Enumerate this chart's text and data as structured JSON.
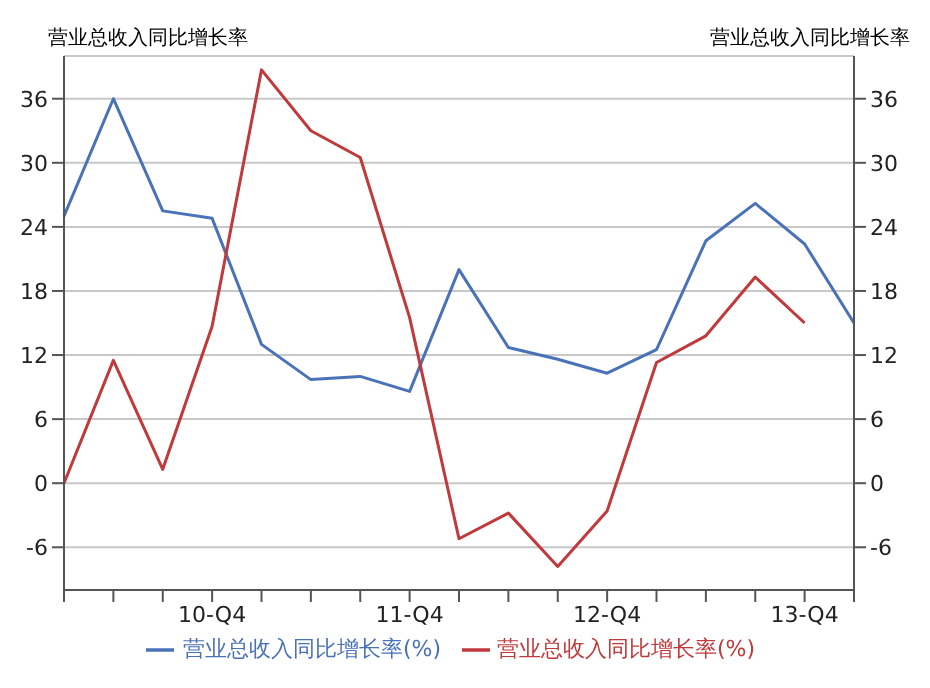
{
  "chart_data": {
    "type": "line",
    "ylabel": "营业总收入同比增长率",
    "y2label": "营业总收入同比增长率",
    "categories": [
      null,
      null,
      null,
      "10-Q4",
      null,
      null,
      null,
      "11-Q4",
      null,
      null,
      null,
      "12-Q4",
      null,
      null,
      null,
      "13-Q4",
      null
    ],
    "series": [
      {
        "name": "营业总收入同比增长率(%)",
        "color": "#4a72b8",
        "values": [
          25,
          36,
          25.5,
          24.8,
          13,
          9.7,
          10,
          8.6,
          20,
          12.7,
          11.6,
          10.3,
          12.5,
          22.7,
          26.2,
          22.4,
          15
        ]
      },
      {
        "name": "营业总收入同比增长率(%)",
        "color": "#c0393b",
        "values": [
          0,
          11.5,
          1.3,
          14.7,
          38.7,
          33,
          30.5,
          15.5,
          -5.2,
          -2.8,
          -7.8,
          -2.6,
          11.3,
          13.8,
          19.3,
          15,
          null
        ]
      }
    ],
    "ylim": [
      -10,
      40
    ],
    "yticks": [
      -6,
      0,
      6,
      12,
      18,
      24,
      30,
      36
    ],
    "y2lim": [
      -10,
      40
    ],
    "y2ticks": [
      -6,
      0,
      6,
      12,
      18,
      24,
      30,
      36
    ],
    "grid": "y",
    "legend": "bottom",
    "marker": "none",
    "line_style": "solid"
  }
}
